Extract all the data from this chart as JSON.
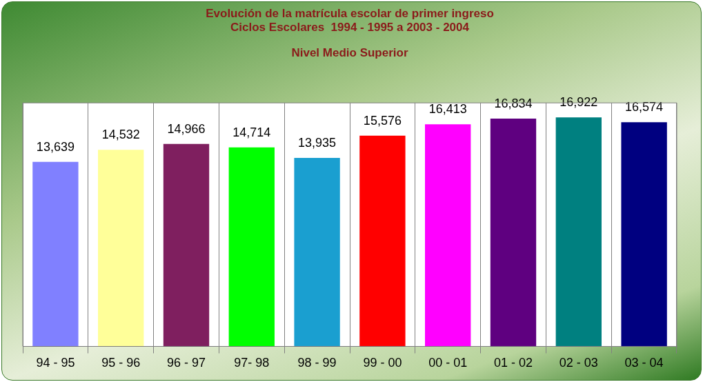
{
  "chart_data": {
    "type": "bar",
    "title": "Evolución de la matrícula escolar de primer ingreso\nCiclos Escolares  1994 - 1995 a 2003 - 2004",
    "subtitle": "Nivel Medio Superior",
    "categories": [
      "94 - 95",
      "95 - 96",
      "96 - 97",
      "97- 98",
      "98 - 99",
      "99 - 00",
      "00 - 01",
      "01 - 02",
      "02 - 03",
      "03 - 04"
    ],
    "values": [
      13639,
      14532,
      14966,
      14714,
      13935,
      15576,
      16413,
      16834,
      16922,
      16574
    ],
    "colors": [
      "#8080ff",
      "#ffff99",
      "#7f1f5f",
      "#00ff00",
      "#1a9fd0",
      "#ff0000",
      "#ff00ff",
      "#5f0080",
      "#008080",
      "#000080"
    ],
    "value_labels": [
      "13,639",
      "14,532",
      "14,966",
      "14,714",
      "13,935",
      "15,576",
      "16,413",
      "16,834",
      "16,922",
      "16,574"
    ],
    "tick_labels": "x",
    "grid": "x",
    "legend": false
  }
}
